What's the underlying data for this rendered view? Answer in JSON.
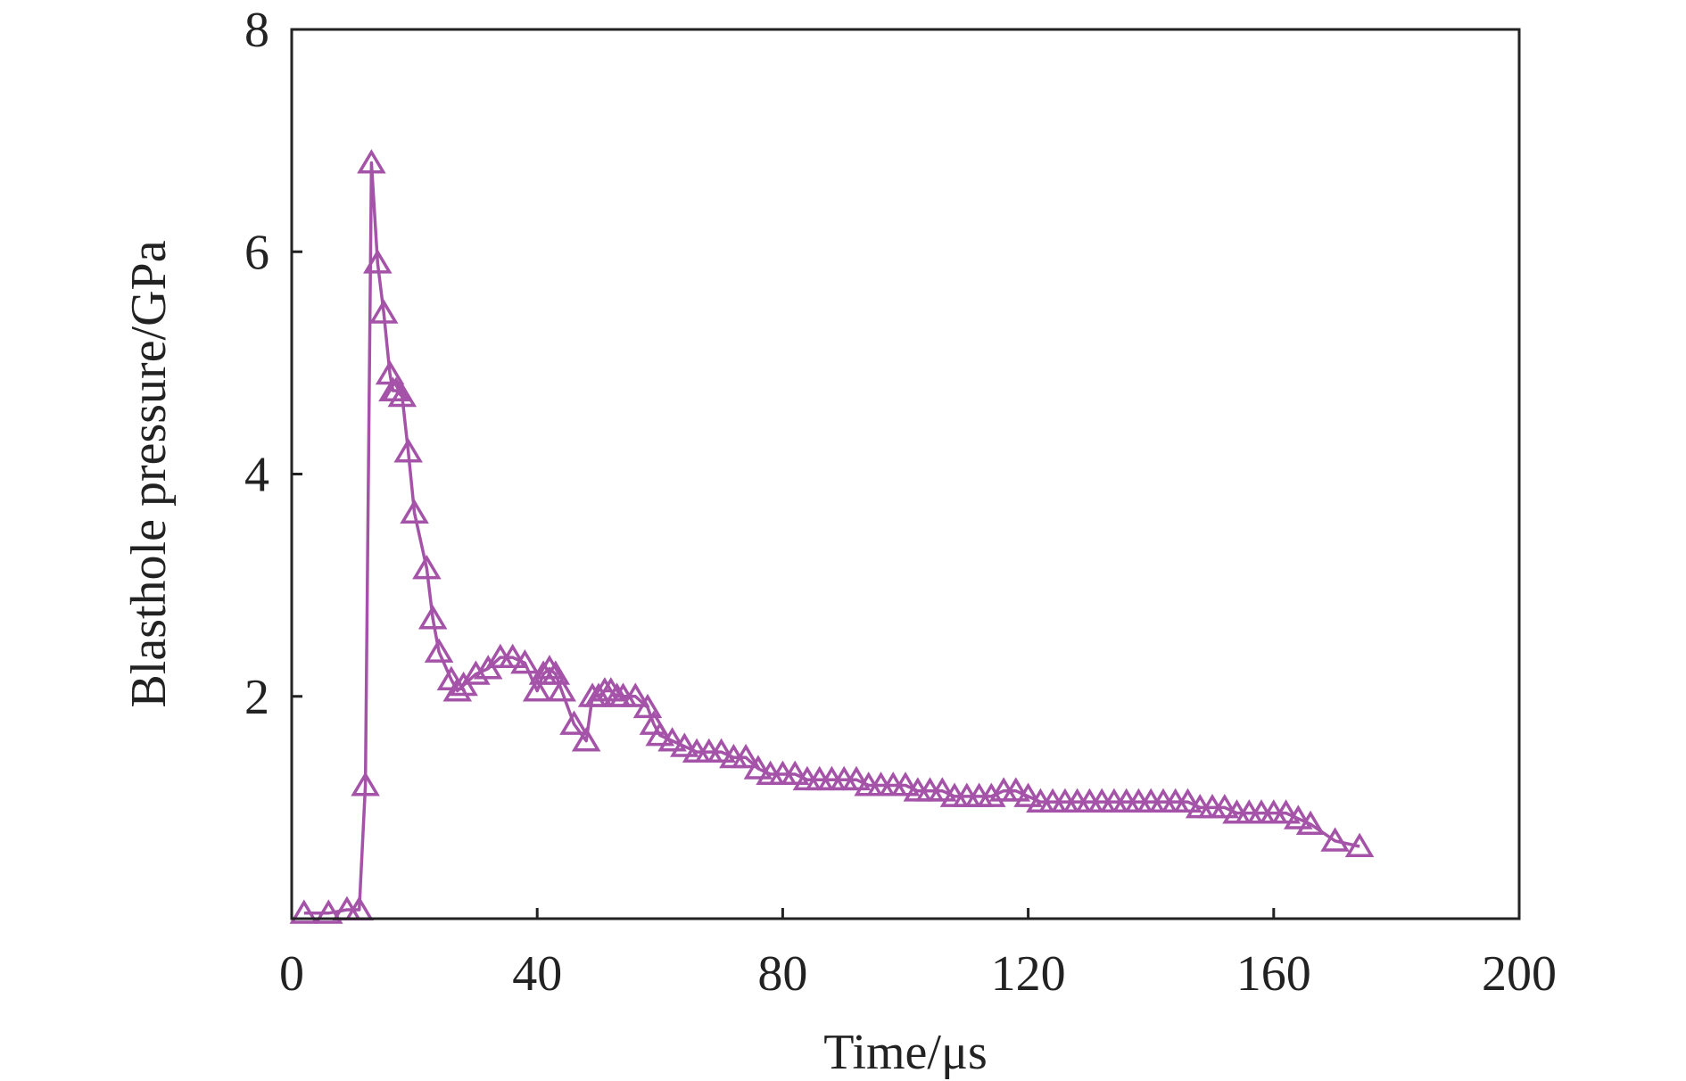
{
  "chart_data": {
    "type": "line",
    "title": "",
    "xlabel": "Time/μs",
    "ylabel": "Blasthole pressure/GPa",
    "xlim": [
      0,
      200
    ],
    "ylim": [
      0,
      8
    ],
    "xticks": [
      0,
      40,
      80,
      120,
      160,
      200
    ],
    "yticks": [
      2,
      4,
      6,
      8
    ],
    "xtick_labels": [
      "0",
      "40",
      "80",
      "120",
      "160",
      "200"
    ],
    "ytick_labels": [
      "2",
      "4",
      "6",
      "8"
    ],
    "grid": false,
    "legend": "none",
    "series": [
      {
        "marker": "open-triangle",
        "color": "#A453A8",
        "x": [
          2,
          6,
          9,
          11,
          12,
          13,
          14,
          15,
          16,
          16.5,
          17,
          18,
          19,
          20,
          22,
          23,
          24,
          26,
          27,
          28,
          30,
          32,
          34,
          36,
          38,
          40,
          41,
          42,
          43,
          44,
          46,
          48,
          49,
          50,
          51,
          52,
          53,
          54,
          56,
          58,
          59,
          60,
          62,
          64,
          66,
          68,
          70,
          72,
          74,
          76,
          78,
          80,
          82,
          84,
          86,
          88,
          90,
          92,
          94,
          96,
          98,
          100,
          102,
          104,
          106,
          108,
          110,
          112,
          114,
          116,
          118,
          120,
          122,
          124,
          126,
          128,
          130,
          132,
          134,
          136,
          138,
          140,
          142,
          144,
          146,
          148,
          150,
          152,
          154,
          156,
          158,
          160,
          162,
          164,
          166,
          170,
          174
        ],
        "y": [
          0.05,
          0.05,
          0.08,
          0.08,
          1.2,
          6.8,
          5.9,
          5.45,
          4.9,
          4.75,
          4.75,
          4.7,
          4.2,
          3.65,
          3.15,
          2.7,
          2.4,
          2.15,
          2.05,
          2.1,
          2.2,
          2.25,
          2.35,
          2.35,
          2.3,
          2.05,
          2.2,
          2.25,
          2.2,
          2.05,
          1.75,
          1.6,
          2.0,
          2.0,
          2.05,
          2.05,
          2.0,
          2.0,
          2.0,
          1.9,
          1.75,
          1.65,
          1.6,
          1.55,
          1.5,
          1.5,
          1.5,
          1.45,
          1.45,
          1.35,
          1.3,
          1.3,
          1.3,
          1.25,
          1.25,
          1.25,
          1.25,
          1.25,
          1.2,
          1.2,
          1.2,
          1.2,
          1.15,
          1.15,
          1.15,
          1.1,
          1.1,
          1.1,
          1.1,
          1.15,
          1.15,
          1.1,
          1.05,
          1.05,
          1.05,
          1.05,
          1.05,
          1.05,
          1.05,
          1.05,
          1.05,
          1.05,
          1.05,
          1.05,
          1.05,
          1.0,
          1.0,
          1.0,
          0.95,
          0.95,
          0.95,
          0.95,
          0.95,
          0.9,
          0.85,
          0.7,
          0.65
        ]
      }
    ]
  }
}
